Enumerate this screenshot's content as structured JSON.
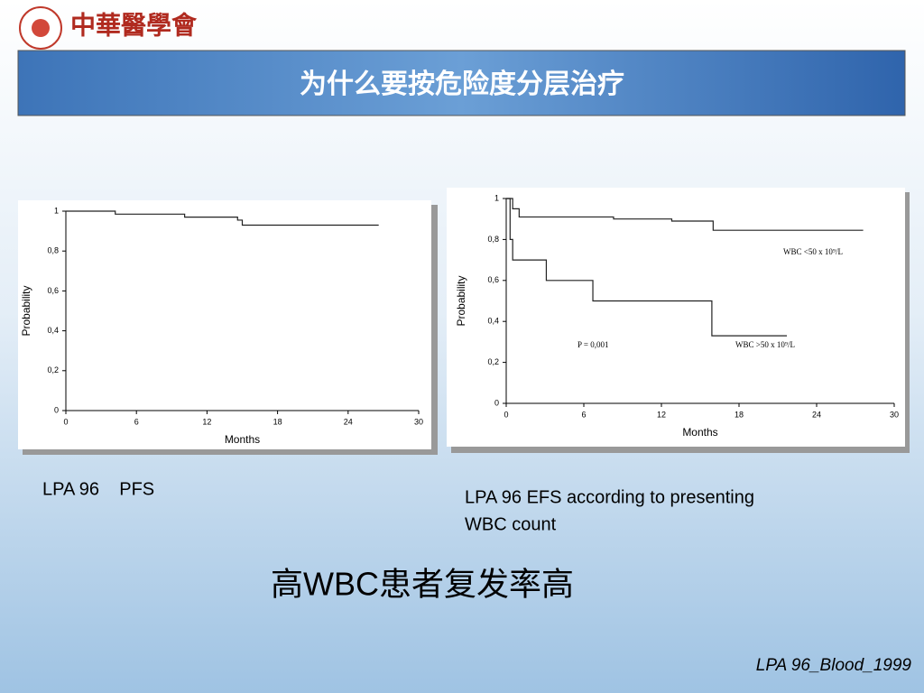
{
  "header": {
    "logo_text": "中華醫學會",
    "title": "为什么要按危险度分层治疗"
  },
  "chart_data": [
    {
      "type": "step",
      "ylabel": "Probability",
      "xlabel": "Months",
      "xlim": [
        0,
        30
      ],
      "xticks": [
        0,
        6,
        12,
        18,
        24,
        30
      ],
      "ylim": [
        0,
        1
      ],
      "yticks": [
        0,
        {
          "value": 0.2,
          "label": "0,2"
        },
        {
          "value": 0.4,
          "label": "0,4"
        },
        {
          "value": 0.6,
          "label": "0,6"
        },
        {
          "value": 0.8,
          "label": "0,8"
        },
        1
      ],
      "series": [
        {
          "color": "#222222",
          "x": [
            0,
            4.2,
            10.1,
            14.6,
            15,
            26.6
          ],
          "values": [
            1,
            0.985,
            0.97,
            0.955,
            0.93,
            0.93
          ]
        }
      ]
    },
    {
      "type": "step",
      "ylabel": "Probability",
      "xlabel": "Months",
      "xlim": [
        0,
        30
      ],
      "xticks": [
        0,
        6,
        12,
        18,
        24,
        30
      ],
      "ylim": [
        0,
        1
      ],
      "yticks": [
        0,
        {
          "value": 0.2,
          "label": "0,2"
        },
        {
          "value": 0.4,
          "label": "0,4"
        },
        {
          "value": 0.6,
          "label": "0,6"
        },
        {
          "value": 0.8,
          "label": "0,8"
        },
        1
      ],
      "annotations": [
        "P = 0,001"
      ],
      "series": [
        {
          "name": "WBC <50 x 10⁹/L",
          "color": "#222222",
          "x": [
            0,
            0.5,
            1,
            8.3,
            12.8,
            16,
            27.6
          ],
          "values": [
            1,
            0.95,
            0.91,
            0.9,
            0.89,
            0.845,
            0.845
          ]
        },
        {
          "name": "WBC >50 x 10⁹/L",
          "color": "#222222",
          "x": [
            0,
            0.3,
            0.5,
            3.1,
            6.7,
            15.9,
            21.7
          ],
          "values": [
            1,
            0.8,
            0.7,
            0.6,
            0.5,
            0.33,
            0.33
          ]
        }
      ]
    }
  ],
  "captions": {
    "left": "LPA 96    PFS",
    "right_line1": "LPA 96 EFS according to presenting",
    "right_line2": "WBC count",
    "conclusion": "高WBC患者复发率高",
    "source": "LPA 96_Blood_1999"
  }
}
